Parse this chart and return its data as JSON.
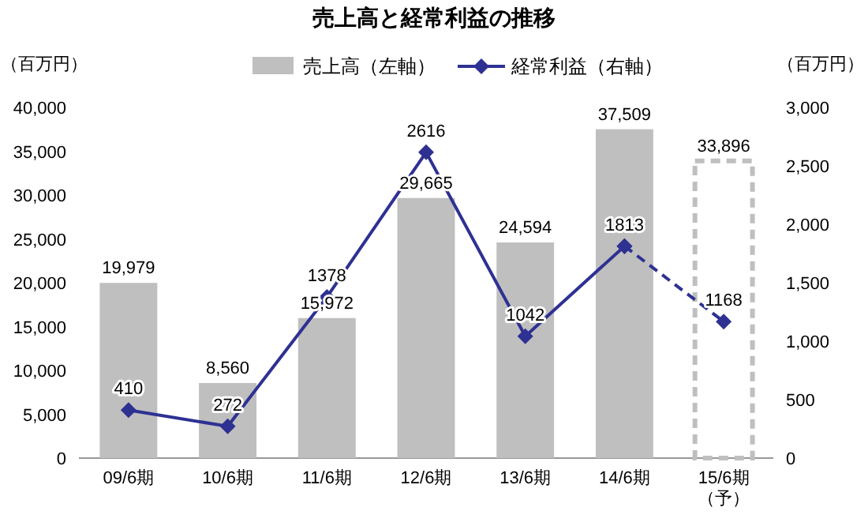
{
  "chart_data": {
    "type": "bar",
    "title": "売上高と経常利益の推移",
    "ylabel": "（百万円）",
    "y2label": "（百万円）",
    "categories": [
      "09/6期",
      "10/6期",
      "11/6期",
      "12/6期",
      "13/6期",
      "14/6期",
      "15/6期（予）"
    ],
    "ylim": [
      0,
      40000
    ],
    "yticks": [
      {
        "value": 0,
        "label": "0"
      },
      {
        "value": 5000,
        "label": "5,000"
      },
      {
        "value": 10000,
        "label": "10,000"
      },
      {
        "value": 15000,
        "label": "15,000"
      },
      {
        "value": 20000,
        "label": "20,000"
      },
      {
        "value": 25000,
        "label": "25,000"
      },
      {
        "value": 30000,
        "label": "30,000"
      },
      {
        "value": 35000,
        "label": "35,000"
      },
      {
        "value": 40000,
        "label": "40,000"
      }
    ],
    "y2lim": [
      0,
      3000
    ],
    "y2ticks": [
      {
        "value": 0,
        "label": "0"
      },
      {
        "value": 500,
        "label": "500"
      },
      {
        "value": 1000,
        "label": "1,000"
      },
      {
        "value": 1500,
        "label": "1,500"
      },
      {
        "value": 2000,
        "label": "2,000"
      },
      {
        "value": 2500,
        "label": "2,500"
      },
      {
        "value": 3000,
        "label": "3,000"
      }
    ],
    "legend": "top",
    "series": [
      {
        "name": "売上高（左軸）",
        "color": "#bfbfbf",
        "values": [
          19979,
          8560,
          15972,
          29665,
          24594,
          37509,
          null
        ],
        "value_labels": [
          "19,979",
          "8,560",
          "15,972",
          "29,665",
          "24,594",
          "37,509",
          null
        ]
      },
      {
        "color": "#bfbfbf",
        "line_style": "dashed",
        "values": [
          null,
          null,
          null,
          null,
          null,
          null,
          33896
        ],
        "value_labels": [
          null,
          null,
          null,
          null,
          null,
          null,
          "33,896"
        ]
      },
      {
        "type": "line",
        "axis": "y2",
        "name": "経常利益（右軸）",
        "color": "#2e3192",
        "marker": "diamond",
        "line_style": "solid",
        "values": [
          410,
          272,
          1378,
          2616,
          1042,
          1813,
          null
        ],
        "value_labels": [
          "410",
          "272",
          "1378",
          "2616",
          "1042",
          "1813",
          null
        ]
      },
      {
        "type": "line",
        "axis": "y2",
        "color": "#2e3192",
        "marker": "diamond",
        "line_style": "dashed",
        "values": [
          null,
          null,
          null,
          null,
          null,
          1813,
          1168
        ],
        "value_labels": [
          null,
          null,
          null,
          null,
          null,
          null,
          "1168"
        ]
      }
    ]
  }
}
